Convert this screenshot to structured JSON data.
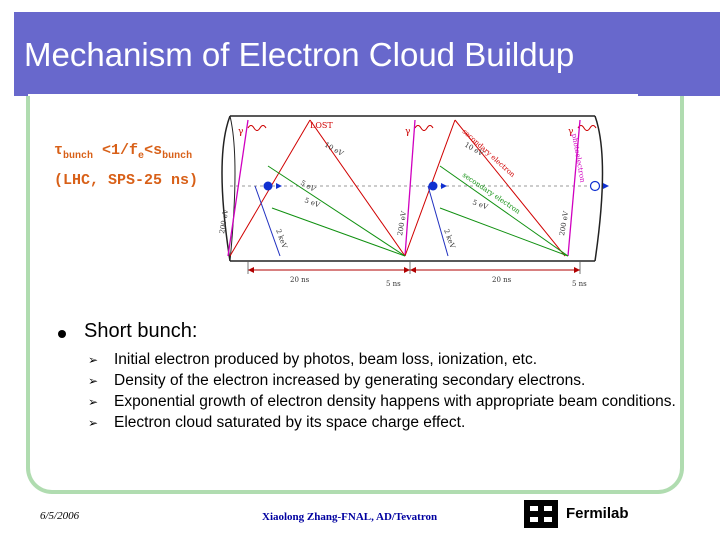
{
  "slide": {
    "title": "Mechanism of Electron Cloud Buildup"
  },
  "formula": {
    "tau": "τ",
    "bunch1": "bunch",
    "lt": " <1/f",
    "e": "e",
    "lt2": "<s",
    "bunch2": "bunch",
    "note": "(LHC, SPS-25 ns)"
  },
  "diagram": {
    "lost_label": "LOST",
    "gamma": "γ",
    "labels": {
      "ev200_1": "200 eV",
      "ev10_1": "10 eV",
      "ev5_1": "5 eV",
      "ev5_2": "5 eV",
      "kev2_1": "2 keV",
      "ev200_2": "200 eV",
      "ev10_2": "10 eV",
      "ev5_3": "5 eV",
      "kev2_2": "2 keV",
      "ev200_3": "200 eV",
      "secondary1": "secondary electron",
      "secondary2": "secondary electron",
      "photoelectron": "photoelectron"
    },
    "time_labels": {
      "t1": "20 ns",
      "t2": "5 ns",
      "t3": "20 ns",
      "t4": "5 ns"
    }
  },
  "bullets": {
    "main": "Short bunch:",
    "subs": [
      "Initial electron produced by photos, beam loss, ionization, etc.",
      "Density of the electron increased by generating secondary electrons.",
      "Exponential growth of electron density happens with appropriate beam conditions.",
      "Electron cloud saturated by its space charge effect."
    ]
  },
  "footer": {
    "date": "6/5/2006",
    "credit": "Xiaolong Zhang-FNAL, AD/Tevatron",
    "logo_text": "Fermilab"
  },
  "colors": {
    "title_bg": "#6868cc",
    "frame": "#b0dcb0",
    "formula": "#d86018",
    "credit": "#0000a0"
  }
}
